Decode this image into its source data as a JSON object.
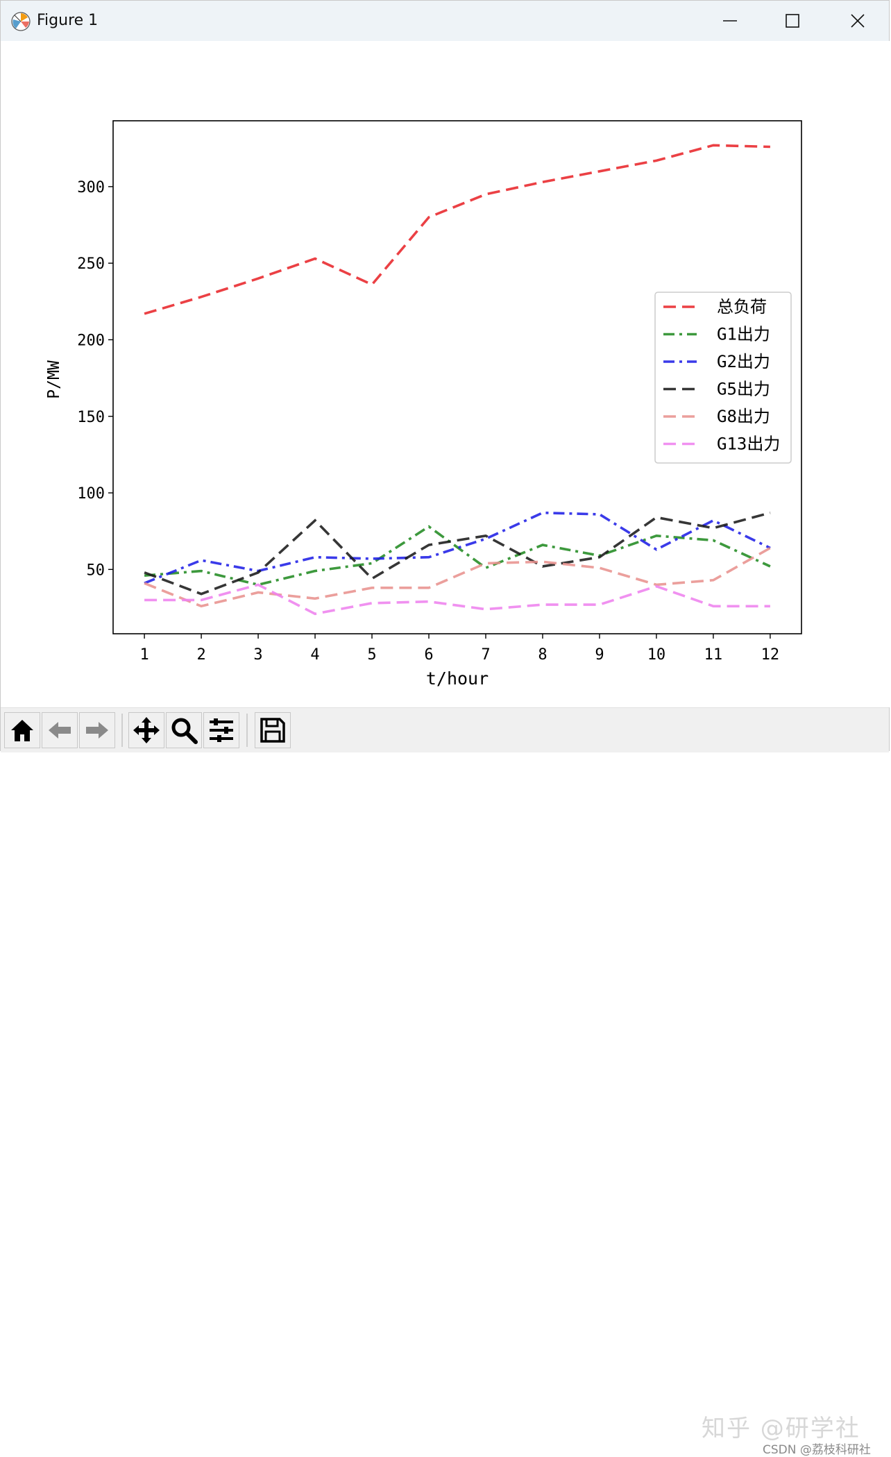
{
  "window": {
    "title": "Figure 1",
    "icons": {
      "app": "matplotlib-icon",
      "minimize": "minimize-icon",
      "maximize": "maximize-icon",
      "close": "close-icon"
    }
  },
  "toolbar": {
    "buttons": [
      {
        "name": "home-button",
        "icon": "home-icon"
      },
      {
        "name": "back-button",
        "icon": "arrow-left-icon"
      },
      {
        "name": "forward-button",
        "icon": "arrow-right-icon"
      },
      {
        "name": "pan-button",
        "icon": "move-icon"
      },
      {
        "name": "zoom-button",
        "icon": "magnifier-icon"
      },
      {
        "name": "configure-subplots-button",
        "icon": "sliders-icon"
      },
      {
        "name": "save-button",
        "icon": "floppy-disk-icon"
      }
    ]
  },
  "watermark": {
    "text": "知乎 @研学社",
    "csdn": "CSDN @荔枝科研社"
  },
  "chart_data": {
    "type": "line",
    "xlabel": "t/hour",
    "ylabel": "P/MW",
    "x": [
      1,
      2,
      3,
      4,
      5,
      6,
      7,
      8,
      9,
      10,
      11,
      12
    ],
    "xticks": [
      "1",
      "2",
      "3",
      "4",
      "5",
      "6",
      "7",
      "8",
      "9",
      "10",
      "11",
      "12"
    ],
    "yticks": [
      50,
      100,
      150,
      200,
      250,
      300
    ],
    "xlim": [
      0.45,
      12.55
    ],
    "ylim": [
      8,
      343
    ],
    "grid": false,
    "legend_position": "center-right",
    "series": [
      {
        "name": "总负荷",
        "color": "#e8262a",
        "style": "dashed",
        "values": [
          217,
          228,
          240,
          253,
          236,
          280,
          295,
          303,
          310,
          317,
          327,
          326
        ]
      },
      {
        "name": "G1出力",
        "color": "#228b22",
        "style": "dashdot",
        "values": [
          46,
          49,
          40,
          49,
          54,
          78,
          51,
          66,
          59,
          72,
          69,
          52
        ]
      },
      {
        "name": "G2出力",
        "color": "#1f1fe6",
        "style": "dashdot",
        "values": [
          41,
          56,
          49,
          58,
          57,
          58,
          70,
          87,
          86,
          63,
          82,
          64
        ]
      },
      {
        "name": "G5出力",
        "color": "#1a1a1a",
        "style": "dashed",
        "values": [
          48,
          34,
          48,
          82,
          44,
          66,
          72,
          52,
          58,
          84,
          77,
          87
        ]
      },
      {
        "name": "G8出力",
        "color": "#e8928e",
        "style": "dashed",
        "values": [
          41,
          26,
          35,
          31,
          38,
          38,
          54,
          55,
          51,
          40,
          43,
          64
        ]
      },
      {
        "name": "G13出力",
        "color": "#ee82ee",
        "style": "dashed",
        "values": [
          30,
          30,
          40,
          21,
          28,
          29,
          24,
          27,
          27,
          39,
          26,
          26
        ]
      }
    ]
  }
}
